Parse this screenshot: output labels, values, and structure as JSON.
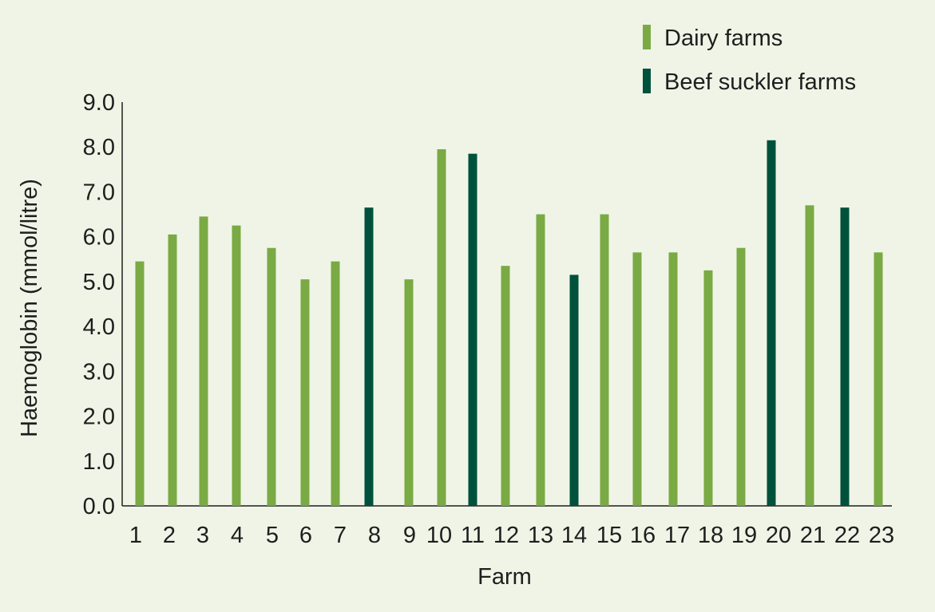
{
  "colors": {
    "background": "#f0f4e6",
    "dairy": "#7aaa44",
    "beef": "#00513b",
    "axis": "#1e1e1e"
  },
  "legend": {
    "dairy_label": "Dairy farms",
    "beef_label": "Beef suckler farms"
  },
  "chart_data": {
    "type": "bar",
    "xlabel": "Farm",
    "ylabel": "Haemoglobin (mmol/litre)",
    "ylim": [
      0,
      9
    ],
    "yticks": [
      "0.0",
      "1.0",
      "2.0",
      "3.0",
      "4.0",
      "5.0",
      "6.0",
      "7.0",
      "8.0",
      "9.0"
    ],
    "grid": false,
    "legend_position": "top-right",
    "categories": [
      "1",
      "2",
      "3",
      "4",
      "5",
      "6",
      "7",
      "8",
      "9",
      "10",
      "11",
      "12",
      "13",
      "14",
      "15",
      "16",
      "17",
      "18",
      "19",
      "20",
      "21",
      "22",
      "23"
    ],
    "values": [
      5.45,
      6.05,
      6.45,
      6.25,
      5.75,
      5.05,
      5.45,
      6.65,
      5.05,
      7.95,
      7.85,
      5.35,
      6.5,
      5.15,
      6.5,
      5.65,
      5.65,
      5.25,
      5.75,
      8.15,
      6.7,
      6.65,
      5.65
    ],
    "farm_type": [
      "dairy",
      "dairy",
      "dairy",
      "dairy",
      "dairy",
      "dairy",
      "dairy",
      "beef",
      "dairy",
      "dairy",
      "beef",
      "dairy",
      "dairy",
      "beef",
      "dairy",
      "dairy",
      "dairy",
      "dairy",
      "dairy",
      "beef",
      "dairy",
      "beef",
      "dairy"
    ]
  }
}
